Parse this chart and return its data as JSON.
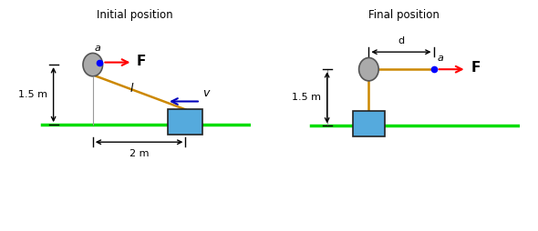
{
  "bg_color": "#ffffff",
  "green_line_color": "#00dd00",
  "rope_color": "#cc8800",
  "box_color": "#55aadd",
  "box_edge_color": "#222222",
  "ball_color": "#aaaaaa",
  "ball_edge_color": "#555555",
  "dot_color": "#0000ff",
  "arrow_F_color": "#ff0000",
  "arrow_v_color": "#0000bb",
  "dim_color": "#000000",
  "gray_line_color": "#999999",
  "title_left": "Initial position",
  "title_right": "Final position",
  "label_15m": "1.5 m",
  "label_2m": "2 m",
  "label_d": "d",
  "label_a": "a",
  "label_l": "l",
  "label_F": "F",
  "label_v": "v"
}
